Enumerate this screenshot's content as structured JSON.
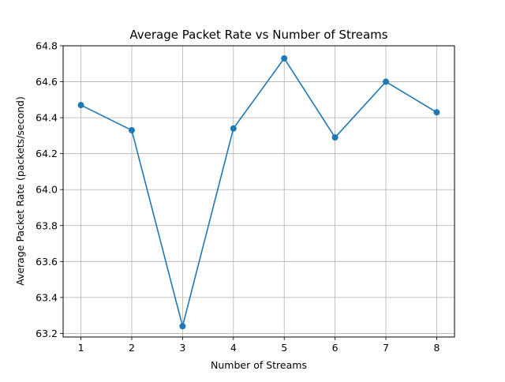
{
  "chart_data": {
    "type": "line",
    "title": "Average Packet Rate vs Number of Streams",
    "xlabel": "Number of Streams",
    "ylabel": "Average Packet Rate (packets/second)",
    "x": [
      1,
      2,
      3,
      4,
      5,
      6,
      7,
      8
    ],
    "series": [
      {
        "values": [
          64.47,
          64.33,
          63.24,
          64.34,
          64.73,
          64.29,
          64.6,
          64.43
        ],
        "color": "#1f77b4",
        "marker": "circle"
      }
    ],
    "xticks": [
      "1",
      "2",
      "3",
      "4",
      "5",
      "6",
      "7",
      "8"
    ],
    "yticks": [
      "63.2",
      "63.4",
      "63.6",
      "63.8",
      "64.0",
      "64.2",
      "64.4",
      "64.6",
      "64.8"
    ],
    "xlim": [
      0.65,
      8.35
    ],
    "ylim": [
      63.18,
      64.8
    ],
    "grid": true,
    "legend": "none"
  }
}
